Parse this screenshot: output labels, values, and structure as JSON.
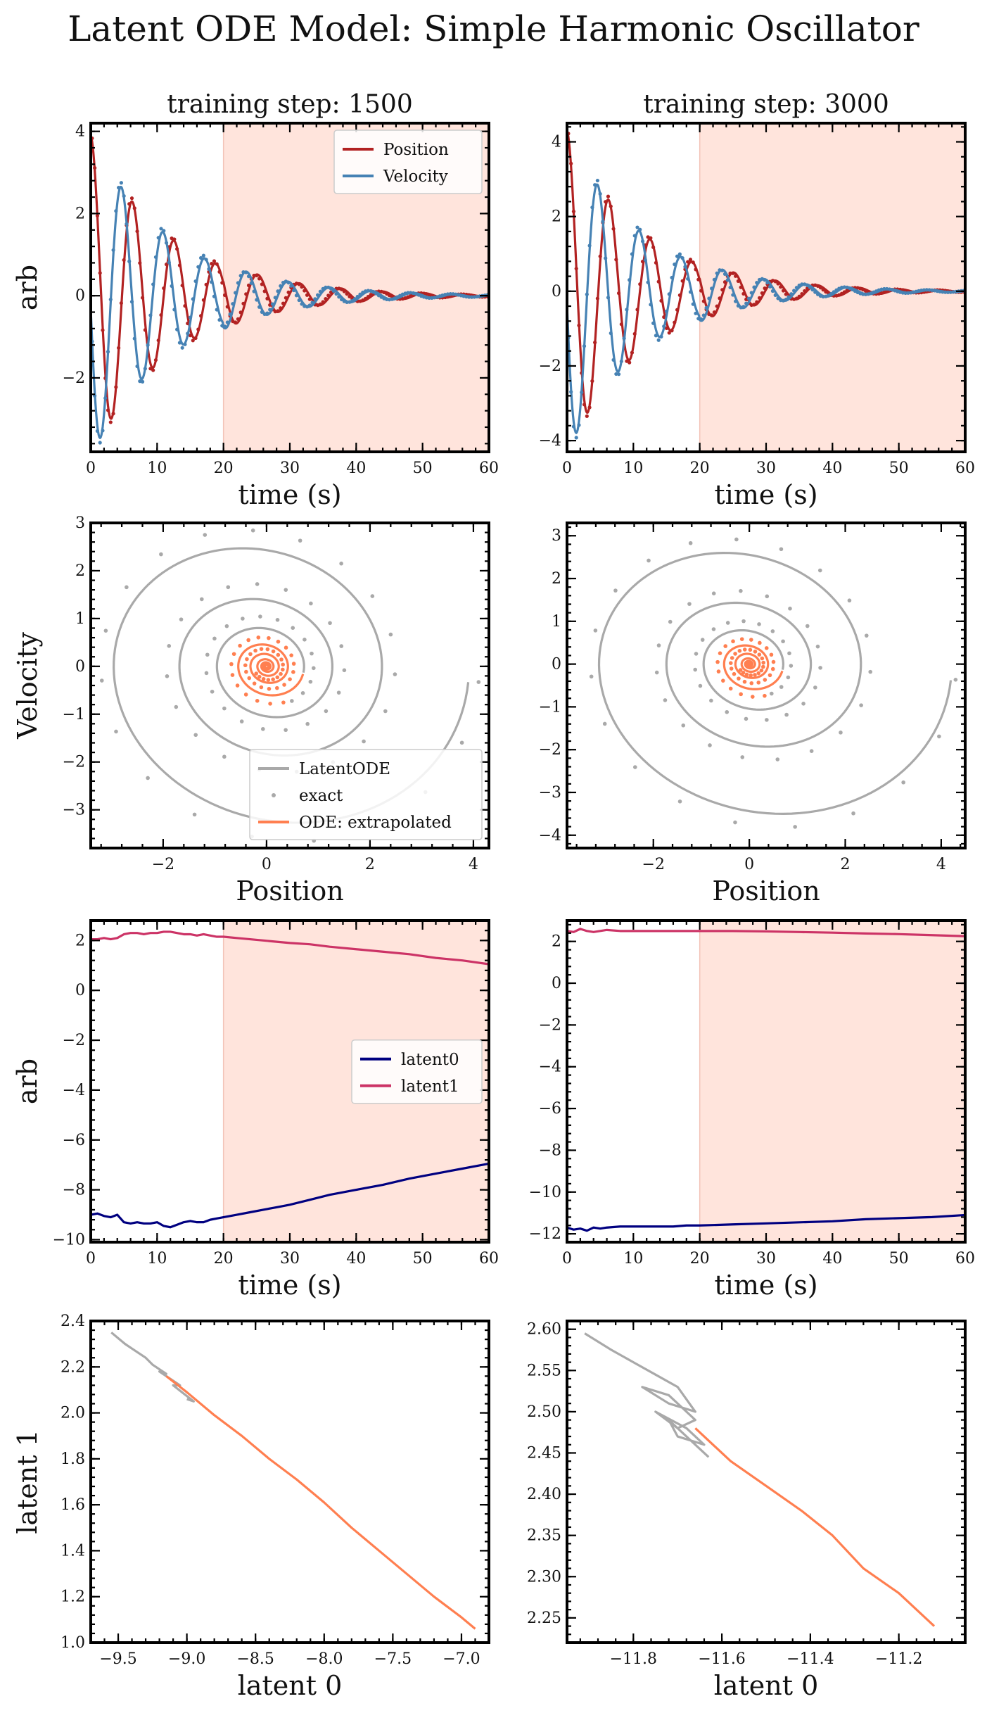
{
  "title": "Latent ODE Model: Simple Harmonic Oscillator",
  "colors": {
    "position": "#b22222",
    "velocity": "#4682b4",
    "latent_ode": "#a9a9a9",
    "exact": "#a9a9a9",
    "extrapolated": "#ff7f50",
    "latent0": "#000080",
    "latent1": "#cc3366",
    "shade": "#ffe4dc"
  },
  "chart_data": [
    {
      "id": "ts-1500",
      "type": "line",
      "title": "training step: 1500",
      "xlabel": "time (s)",
      "ylabel": "arb",
      "xlim": [
        0,
        60
      ],
      "ylim": [
        -3.8,
        4.2
      ],
      "xticks": [
        0,
        10,
        20,
        30,
        40,
        50,
        60
      ],
      "yticks": [
        -2,
        0,
        2,
        4
      ],
      "shade": [
        20,
        60
      ],
      "legend": "top-right",
      "series": [
        {
          "name": "Position",
          "kind": "oscillator",
          "phase": 0,
          "A": 3.9,
          "gamma": 0.085,
          "omega": 1.0,
          "xmax": 60
        },
        {
          "name": "Velocity",
          "kind": "oscillator",
          "phase": 1,
          "A": 3.9,
          "gamma": 0.085,
          "omega": 1.0,
          "xmax": 60
        }
      ]
    },
    {
      "id": "ts-3000",
      "type": "line",
      "title": "training step: 3000",
      "xlabel": "time (s)",
      "ylabel": "",
      "xlim": [
        0,
        60
      ],
      "ylim": [
        -4.3,
        4.5
      ],
      "xticks": [
        0,
        10,
        20,
        30,
        40,
        50,
        60
      ],
      "yticks": [
        -4,
        -2,
        0,
        2,
        4
      ],
      "shade": [
        20,
        60
      ],
      "series": [
        {
          "name": "Position",
          "kind": "oscillator",
          "phase": 0,
          "A": 4.3,
          "gamma": 0.09,
          "omega": 1.0,
          "xmax": 60
        },
        {
          "name": "Velocity",
          "kind": "oscillator",
          "phase": 1,
          "A": 4.3,
          "gamma": 0.09,
          "omega": 1.0,
          "xmax": 60
        }
      ]
    },
    {
      "id": "phase-1500",
      "type": "scatter",
      "xlabel": "Position",
      "ylabel": "Velocity",
      "xlim": [
        -3.4,
        4.3
      ],
      "ylim": [
        -3.8,
        3.0
      ],
      "xticks": [
        -2,
        0,
        2,
        4
      ],
      "yticks": [
        -3,
        -2,
        -1,
        0,
        1,
        2,
        3
      ],
      "legend": "bottom-right",
      "series": [
        {
          "name": "LatentODE",
          "kind": "spiral",
          "A": 3.9,
          "gamma": 0.085,
          "tmax": 20
        },
        {
          "name": "exact",
          "kind": "spiral-dots",
          "A": 4.1,
          "gamma": 0.08,
          "tmax": 20
        },
        {
          "name": "ODE: extrapolated",
          "kind": "spiral-extrap",
          "A": 3.9,
          "gamma": 0.085,
          "tmin": 20,
          "tmax": 60
        }
      ]
    },
    {
      "id": "phase-3000",
      "type": "scatter",
      "xlabel": "Position",
      "ylabel": "",
      "xlim": [
        -3.8,
        4.5
      ],
      "ylim": [
        -4.3,
        3.3
      ],
      "xticks": [
        -2,
        0,
        2,
        4
      ],
      "yticks": [
        -4,
        -3,
        -2,
        -1,
        0,
        1,
        2,
        3
      ],
      "series": [
        {
          "name": "LatentODE",
          "kind": "spiral",
          "A": 4.2,
          "gamma": 0.09,
          "tmax": 20
        },
        {
          "name": "exact",
          "kind": "spiral-dots",
          "A": 4.3,
          "gamma": 0.085,
          "tmax": 20
        },
        {
          "name": "ODE: extrapolated",
          "kind": "spiral-extrap",
          "A": 4.2,
          "gamma": 0.09,
          "tmin": 20,
          "tmax": 60
        }
      ]
    },
    {
      "id": "lat-1500",
      "type": "line",
      "xlabel": "time (s)",
      "ylabel": "arb",
      "xlim": [
        0,
        60
      ],
      "ylim": [
        -10.1,
        2.8
      ],
      "xticks": [
        0,
        10,
        20,
        30,
        40,
        50,
        60
      ],
      "yticks": [
        -10,
        -8,
        -6,
        -4,
        -2,
        0,
        2
      ],
      "shade": [
        20,
        60
      ],
      "legend": "middle-right",
      "series": [
        {
          "name": "latent0",
          "x": [
            0,
            1,
            2,
            3,
            4,
            5,
            6,
            7,
            8,
            9,
            10,
            11,
            12,
            13,
            14,
            15,
            16,
            17,
            18,
            19,
            20,
            22,
            24,
            26,
            28,
            30,
            33,
            36,
            40,
            44,
            48,
            52,
            56,
            60
          ],
          "y": [
            -9.0,
            -8.95,
            -9.05,
            -9.1,
            -9.0,
            -9.3,
            -9.35,
            -9.3,
            -9.35,
            -9.35,
            -9.3,
            -9.45,
            -9.5,
            -9.4,
            -9.3,
            -9.25,
            -9.3,
            -9.3,
            -9.2,
            -9.15,
            -9.1,
            -9.0,
            -8.9,
            -8.8,
            -8.7,
            -8.6,
            -8.4,
            -8.2,
            -8.0,
            -7.8,
            -7.55,
            -7.35,
            -7.15,
            -6.95
          ]
        },
        {
          "name": "latent1",
          "x": [
            0,
            1,
            2,
            3,
            4,
            5,
            6,
            7,
            8,
            9,
            10,
            11,
            12,
            13,
            14,
            15,
            16,
            17,
            18,
            19,
            20,
            22,
            24,
            26,
            28,
            30,
            33,
            36,
            40,
            44,
            48,
            52,
            56,
            60
          ],
          "y": [
            2.05,
            2.05,
            2.1,
            2.05,
            2.1,
            2.25,
            2.3,
            2.3,
            2.25,
            2.3,
            2.3,
            2.35,
            2.35,
            2.3,
            2.25,
            2.25,
            2.2,
            2.25,
            2.2,
            2.15,
            2.15,
            2.1,
            2.05,
            2.0,
            1.95,
            1.9,
            1.85,
            1.75,
            1.65,
            1.55,
            1.45,
            1.3,
            1.2,
            1.05
          ]
        }
      ]
    },
    {
      "id": "lat-3000",
      "type": "line",
      "xlabel": "time (s)",
      "ylabel": "",
      "xlim": [
        0,
        60
      ],
      "ylim": [
        -12.4,
        3.0
      ],
      "xticks": [
        0,
        10,
        20,
        30,
        40,
        50,
        60
      ],
      "yticks": [
        -12,
        -10,
        -8,
        -6,
        -4,
        -2,
        0,
        2
      ],
      "shade": [
        20,
        60
      ],
      "series": [
        {
          "name": "latent0",
          "x": [
            0,
            1,
            2,
            3,
            4,
            5,
            6,
            8,
            10,
            12,
            14,
            16,
            18,
            20,
            25,
            30,
            35,
            40,
            45,
            50,
            55,
            60
          ],
          "y": [
            -11.7,
            -11.8,
            -11.75,
            -11.85,
            -11.7,
            -11.75,
            -11.7,
            -11.65,
            -11.65,
            -11.65,
            -11.65,
            -11.65,
            -11.6,
            -11.6,
            -11.55,
            -11.5,
            -11.45,
            -11.4,
            -11.3,
            -11.25,
            -11.2,
            -11.1
          ]
        },
        {
          "name": "latent1",
          "x": [
            0,
            1,
            2,
            3,
            4,
            5,
            6,
            8,
            10,
            12,
            14,
            16,
            18,
            20,
            25,
            30,
            35,
            40,
            45,
            50,
            55,
            60
          ],
          "y": [
            2.5,
            2.45,
            2.6,
            2.5,
            2.45,
            2.5,
            2.55,
            2.5,
            2.5,
            2.5,
            2.5,
            2.5,
            2.5,
            2.5,
            2.5,
            2.48,
            2.45,
            2.42,
            2.38,
            2.35,
            2.3,
            2.25
          ]
        }
      ]
    },
    {
      "id": "ls-1500",
      "type": "line",
      "xlabel": "latent 0",
      "ylabel": "latent 1",
      "xlim": [
        -9.7,
        -6.8
      ],
      "ylim": [
        1.0,
        2.4
      ],
      "xticks": [
        -9.5,
        -9.0,
        -8.5,
        -8.0,
        -7.5,
        -7.0
      ],
      "yticks": [
        1.0,
        1.2,
        1.4,
        1.6,
        1.8,
        2.0,
        2.2,
        2.4
      ],
      "series": [
        {
          "name": "LatentODE",
          "x": [
            -9.55,
            -9.45,
            -9.4,
            -9.3,
            -9.25,
            -9.15,
            -9.2,
            -9.05,
            -9.1,
            -8.95,
            -9.0
          ],
          "y": [
            2.35,
            2.3,
            2.28,
            2.24,
            2.21,
            2.17,
            2.18,
            2.12,
            2.12,
            2.05,
            2.06
          ]
        },
        {
          "name": "ODE: extrapolated",
          "x": [
            -9.15,
            -9.0,
            -8.8,
            -8.6,
            -8.4,
            -8.2,
            -8.0,
            -7.8,
            -7.6,
            -7.4,
            -7.2,
            -7.0,
            -6.9
          ],
          "y": [
            2.16,
            2.09,
            1.99,
            1.9,
            1.8,
            1.71,
            1.61,
            1.5,
            1.4,
            1.3,
            1.2,
            1.11,
            1.06
          ]
        }
      ]
    },
    {
      "id": "ls-3000",
      "type": "line",
      "xlabel": "latent 0",
      "ylabel": "",
      "xlim": [
        -11.95,
        -11.05
      ],
      "ylim": [
        2.22,
        2.61
      ],
      "xticks": [
        -11.8,
        -11.6,
        -11.4,
        -11.2
      ],
      "yticks": [
        2.25,
        2.3,
        2.35,
        2.4,
        2.45,
        2.5,
        2.55,
        2.6
      ],
      "series": [
        {
          "name": "LatentODE",
          "x": [
            -11.91,
            -11.85,
            -11.8,
            -11.75,
            -11.7,
            -11.66,
            -11.72,
            -11.78,
            -11.72,
            -11.66,
            -11.7,
            -11.75,
            -11.68,
            -11.64,
            -11.7,
            -11.72,
            -11.66,
            -11.63
          ],
          "y": [
            2.595,
            2.575,
            2.56,
            2.545,
            2.53,
            2.5,
            2.51,
            2.53,
            2.52,
            2.49,
            2.48,
            2.5,
            2.48,
            2.46,
            2.47,
            2.49,
            2.46,
            2.445
          ]
        },
        {
          "name": "ODE: extrapolated",
          "x": [
            -11.66,
            -11.62,
            -11.58,
            -11.5,
            -11.42,
            -11.35,
            -11.28,
            -11.2,
            -11.12
          ],
          "y": [
            2.48,
            2.46,
            2.44,
            2.41,
            2.38,
            2.35,
            2.31,
            2.28,
            2.24
          ]
        }
      ]
    }
  ]
}
